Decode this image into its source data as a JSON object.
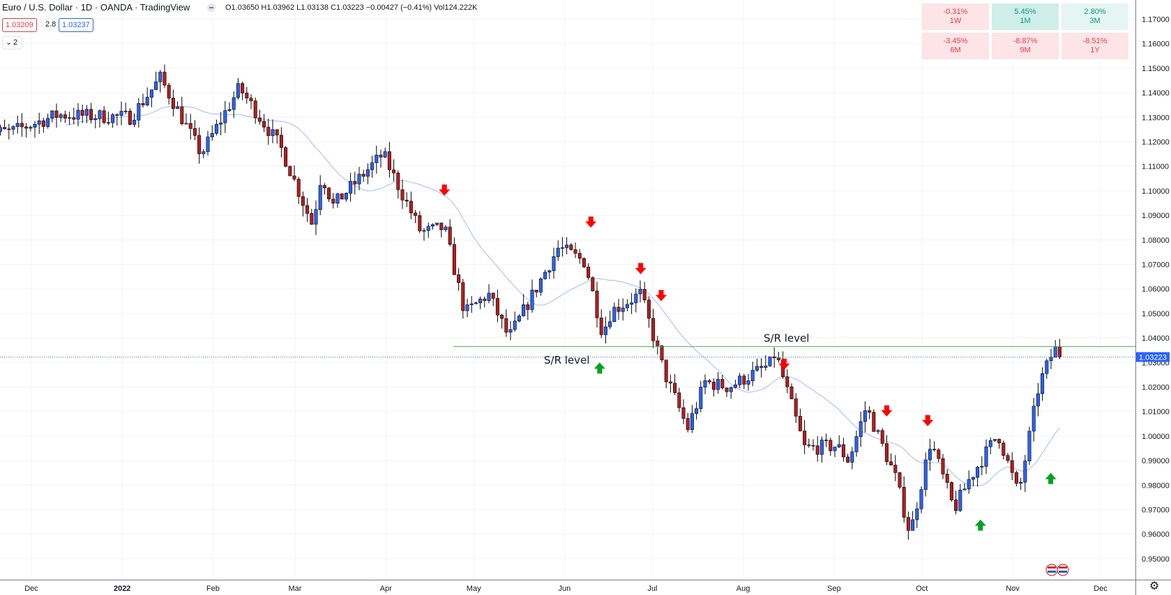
{
  "header": {
    "title": "Euro / U.S. Dollar · 1D · OANDA · TradingView",
    "ohlc": "O1.03650 H1.03962 L1.03138 C1.03223 −0.00427 (−0.41%) Vol124.222K"
  },
  "prices": {
    "bid": "1.03209",
    "spread": "2.8",
    "ask": "1.03237"
  },
  "indicators": {
    "count": "2"
  },
  "performance": [
    {
      "value": "-0.31%",
      "label": "1W",
      "bg": "#fde4e6",
      "fg": "#f23645"
    },
    {
      "value": "5.45%",
      "label": "1M",
      "bg": "#cfeee8",
      "fg": "#089981"
    },
    {
      "value": "2.80%",
      "label": "3M",
      "bg": "#e5f5f2",
      "fg": "#089981"
    },
    {
      "value": "-3.45%",
      "label": "6M",
      "bg": "#fde4e6",
      "fg": "#f23645"
    },
    {
      "value": "-8.87%",
      "label": "9M",
      "bg": "#fde4e6",
      "fg": "#f23645"
    },
    {
      "value": "-8.51%",
      "label": "1Y",
      "bg": "#fde4e6",
      "fg": "#f23645"
    }
  ],
  "chart_data": {
    "type": "candlestick",
    "symbol": "EURUSD",
    "timeframe": "1D",
    "ylim": [
      0.945,
      1.175
    ],
    "yticks": [
      "1.17000",
      "1.16000",
      "1.15000",
      "1.14000",
      "1.13000",
      "1.12000",
      "1.11000",
      "1.10000",
      "1.09000",
      "1.08000",
      "1.07000",
      "1.06000",
      "1.05000",
      "1.04000",
      "1.03000",
      "1.02000",
      "1.01000",
      "1.00000",
      "0.99000",
      "0.98000",
      "0.97000",
      "0.96000",
      "0.95000"
    ],
    "x_ticks": [
      {
        "label": "Dec",
        "bold": false
      },
      {
        "label": "2022",
        "bold": true
      },
      {
        "label": "Feb",
        "bold": false
      },
      {
        "label": "Mar",
        "bold": false
      },
      {
        "label": "Apr",
        "bold": false
      },
      {
        "label": "May",
        "bold": false
      },
      {
        "label": "Jun",
        "bold": false
      },
      {
        "label": "Jul",
        "bold": false
      },
      {
        "label": "Aug",
        "bold": false
      },
      {
        "label": "Sep",
        "bold": false
      },
      {
        "label": "Oct",
        "bold": false
      },
      {
        "label": "Nov",
        "bold": false
      },
      {
        "label": "Dec",
        "bold": false
      }
    ],
    "last_price": "1.03223",
    "last_price_value": 1.03223,
    "sr_level": {
      "value": 1.0365,
      "color": "#4caf50"
    },
    "sr_labels": [
      "S/R level",
      "S/R level"
    ],
    "anchors": [
      {
        "date": "2021-11-24",
        "price": 1.124
      },
      {
        "date": "2021-12-10",
        "price": 1.131
      },
      {
        "date": "2022-01-04",
        "price": 1.13
      },
      {
        "date": "2022-01-14",
        "price": 1.146
      },
      {
        "date": "2022-01-28",
        "price": 1.115
      },
      {
        "date": "2022-02-10",
        "price": 1.142
      },
      {
        "date": "2022-02-24",
        "price": 1.118
      },
      {
        "date": "2022-03-07",
        "price": 1.086
      },
      {
        "date": "2022-03-10",
        "price": 1.107
      },
      {
        "date": "2022-03-14",
        "price": 1.094
      },
      {
        "date": "2022-03-31",
        "price": 1.115
      },
      {
        "date": "2022-04-13",
        "price": 1.083
      },
      {
        "date": "2022-04-21",
        "price": 1.085
      },
      {
        "date": "2022-04-28",
        "price": 1.05
      },
      {
        "date": "2022-05-06",
        "price": 1.058
      },
      {
        "date": "2022-05-13",
        "price": 1.04
      },
      {
        "date": "2022-05-30",
        "price": 1.077
      },
      {
        "date": "2022-06-08",
        "price": 1.071
      },
      {
        "date": "2022-06-14",
        "price": 1.042
      },
      {
        "date": "2022-06-17",
        "price": 1.051
      },
      {
        "date": "2022-06-27",
        "price": 1.058
      },
      {
        "date": "2022-07-05",
        "price": 1.026
      },
      {
        "date": "2022-07-13",
        "price": 1.003
      },
      {
        "date": "2022-07-19",
        "price": 1.022
      },
      {
        "date": "2022-07-27",
        "price": 1.02
      },
      {
        "date": "2022-08-10",
        "price": 1.029
      },
      {
        "date": "2022-08-12",
        "price": 1.034
      },
      {
        "date": "2022-08-22",
        "price": 0.995
      },
      {
        "date": "2022-09-02",
        "price": 0.996
      },
      {
        "date": "2022-09-06",
        "price": 0.99
      },
      {
        "date": "2022-09-12",
        "price": 1.012
      },
      {
        "date": "2022-09-22",
        "price": 0.983
      },
      {
        "date": "2022-09-27",
        "price": 0.96
      },
      {
        "date": "2022-10-04",
        "price": 0.998
      },
      {
        "date": "2022-10-12",
        "price": 0.97
      },
      {
        "date": "2022-10-17",
        "price": 0.982
      },
      {
        "date": "2022-10-27",
        "price": 1.001
      },
      {
        "date": "2022-11-03",
        "price": 0.976
      },
      {
        "date": "2022-11-10",
        "price": 1.021
      },
      {
        "date": "2022-11-15",
        "price": 1.035
      },
      {
        "date": "2022-11-17",
        "price": 1.036
      },
      {
        "date": "2022-11-18",
        "price": 1.032
      }
    ],
    "moving_average": {
      "color": "#b2c4f7",
      "label": ""
    },
    "down_arrows": [
      {
        "date": "2022-04-21",
        "price": 1.1
      },
      {
        "date": "2022-06-10",
        "price": 1.087
      },
      {
        "date": "2022-06-27",
        "price": 1.068
      },
      {
        "date": "2022-07-04",
        "price": 1.057
      },
      {
        "date": "2022-08-15",
        "price": 1.029
      },
      {
        "date": "2022-09-19",
        "price": 1.01
      },
      {
        "date": "2022-10-03",
        "price": 1.006
      }
    ],
    "up_arrows": [
      {
        "date": "2022-06-13",
        "price": 1.028
      },
      {
        "date": "2022-10-21",
        "price": 0.964
      },
      {
        "date": "2022-11-14",
        "price": 0.983
      }
    ],
    "colors": {
      "up": "#2962ff",
      "down": "#b71c1c",
      "wick": "#000000",
      "grid": "#f0f3fa",
      "last_line": "#2962ff"
    }
  }
}
